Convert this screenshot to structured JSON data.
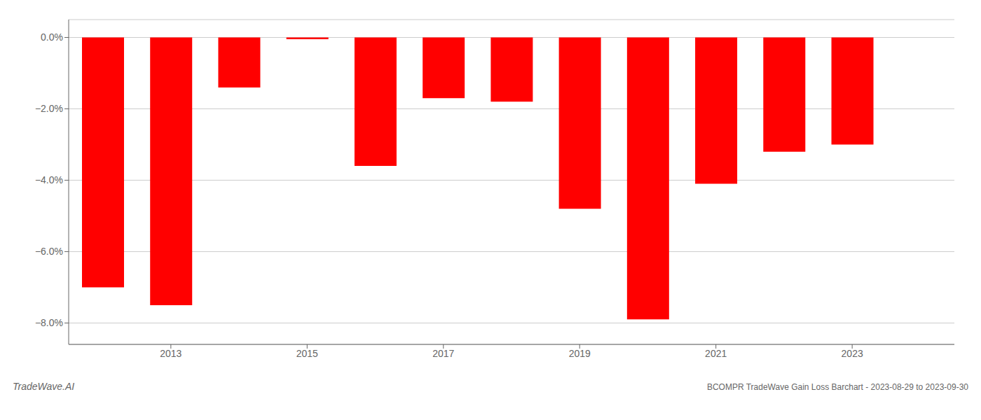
{
  "chart_data": {
    "type": "bar",
    "title": "BCOMPR TradeWave Gain Loss Barchart - 2023-08-29 to 2023-09-30",
    "annotations": [
      "TradeWave.AI"
    ],
    "x": [
      2012,
      2013,
      2014,
      2015,
      2016,
      2017,
      2018,
      2019,
      2020,
      2021,
      2022,
      2023
    ],
    "values": [
      -0.07,
      -0.075,
      -0.014,
      -0.0005,
      -0.036,
      -0.017,
      -0.018,
      -0.048,
      -0.079,
      -0.041,
      -0.032,
      -0.03
    ],
    "color": "#ff0000",
    "xlim": [
      2011.5,
      2024.5
    ],
    "xticks": [
      2013,
      2015,
      2017,
      2019,
      2021,
      2023
    ],
    "ylim": [
      -0.086,
      0.005
    ],
    "yticks": [
      {
        "value": 0.0,
        "label": "0.0%"
      },
      {
        "value": -0.02,
        "label": "−2.0%"
      },
      {
        "value": -0.04,
        "label": "−4.0%"
      },
      {
        "value": -0.06,
        "label": "−6.0%"
      },
      {
        "value": -0.08,
        "label": "−8.0%"
      }
    ],
    "grid": true
  }
}
